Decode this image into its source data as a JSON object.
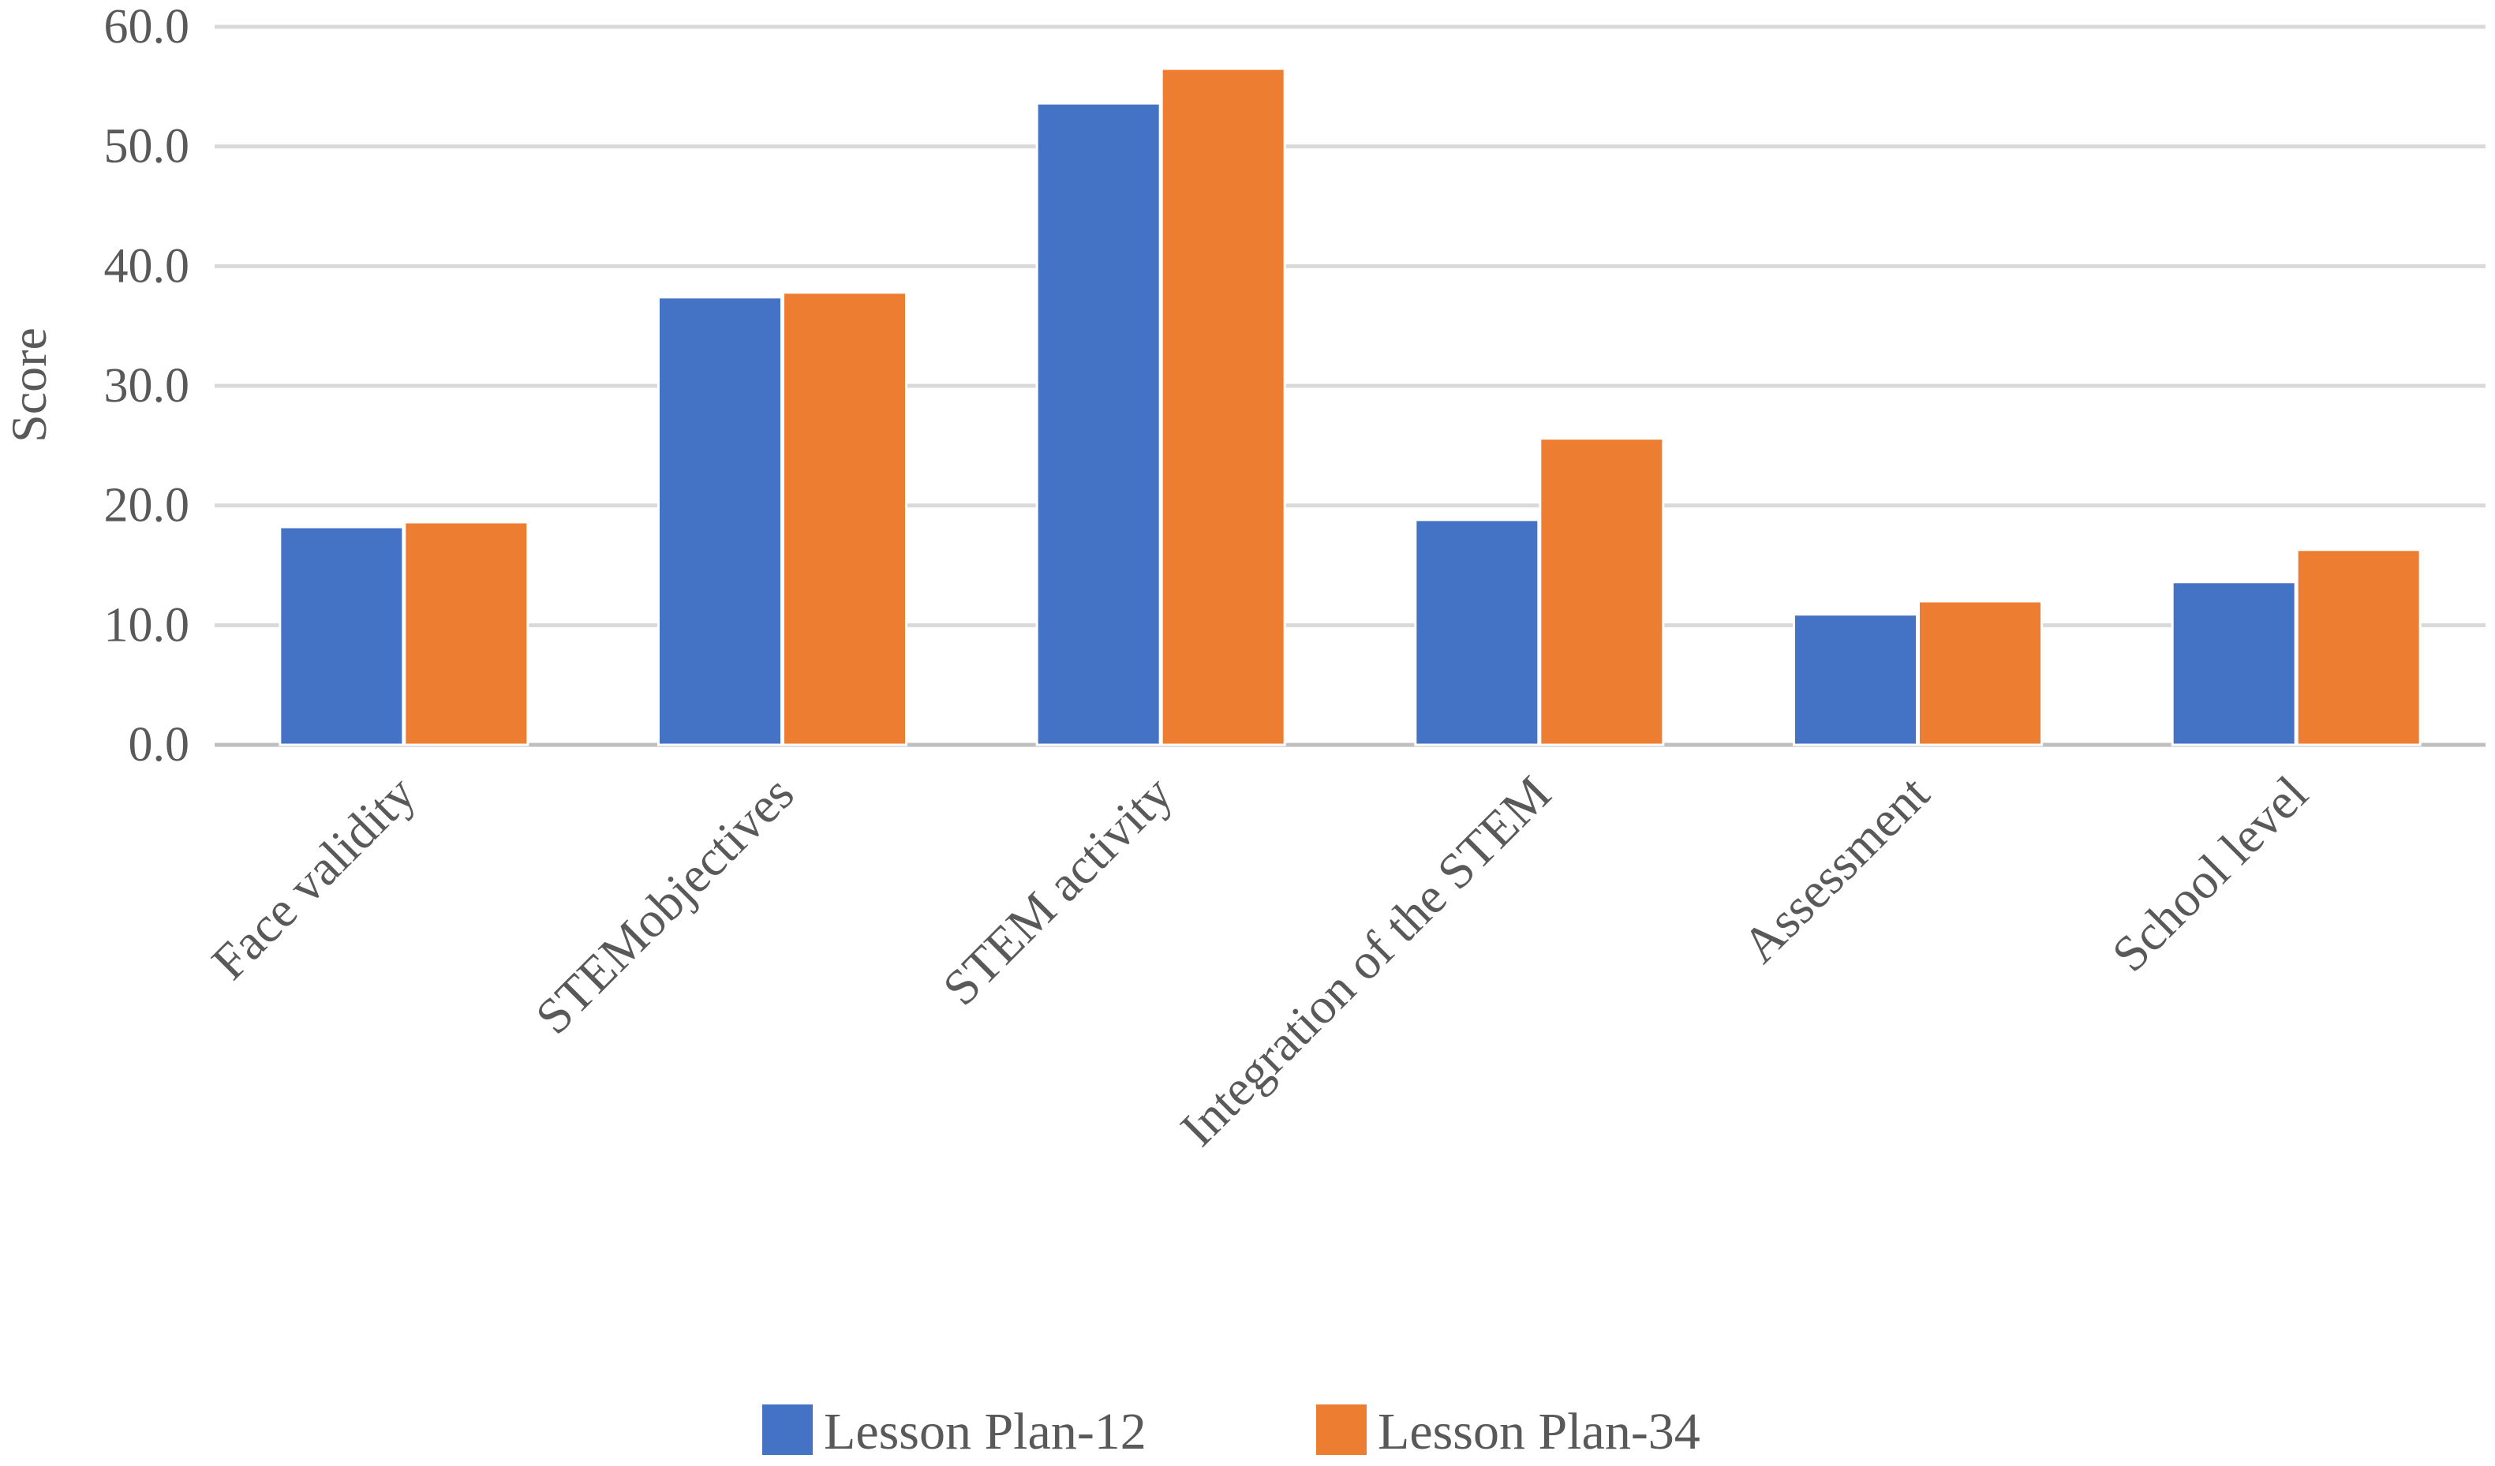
{
  "chart_data": {
    "type": "bar",
    "title": "",
    "xlabel": "",
    "ylabel": "Score",
    "ylim": [
      0,
      60
    ],
    "yticks": [
      "0.0",
      "10.0",
      "20.0",
      "30.0",
      "40.0",
      "50.0",
      "60.0"
    ],
    "grid": true,
    "legend_position": "bottom",
    "categories": [
      "Face validity",
      "STEMobjectives",
      "STEM activity",
      "Integration of the STEM",
      "Assessment",
      "School level"
    ],
    "series": [
      {
        "name": "Lesson Plan-12",
        "color": "#4472C4",
        "values": [
          18.2,
          37.4,
          53.6,
          18.8,
          10.9,
          13.6
        ]
      },
      {
        "name": "Lesson Plan-34",
        "color": "#ED7D31",
        "values": [
          18.6,
          37.8,
          56.5,
          25.6,
          12.0,
          16.3
        ]
      }
    ]
  }
}
